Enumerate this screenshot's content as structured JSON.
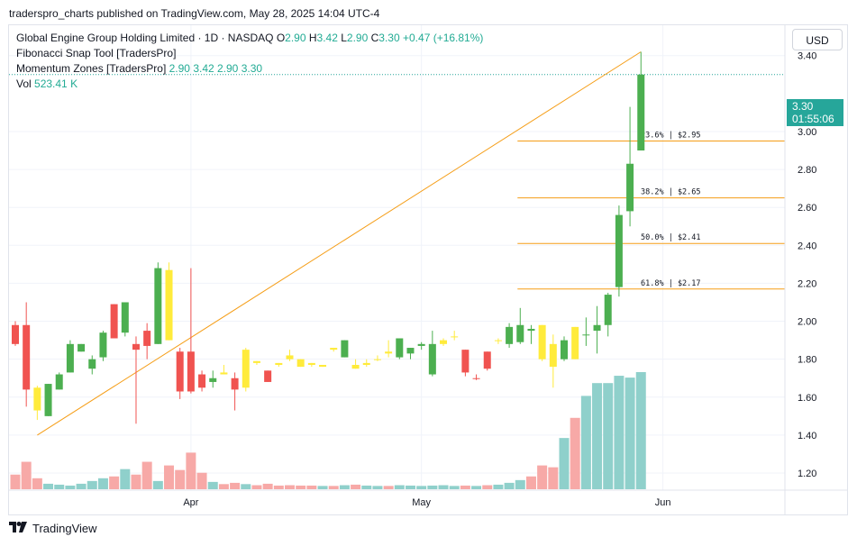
{
  "header": {
    "published_text": "traderspro_charts published on TradingView.com, May 28, 2025 14:04 UTC-4"
  },
  "legend": {
    "symbol_line": "Global Engine Group Holding Limited · 1D · NASDAQ",
    "o_label": "O",
    "o_value": "2.90",
    "h_label": "H",
    "h_value": "3.42",
    "l_label": "L",
    "l_value": "2.90",
    "c_label": "C",
    "c_value": "3.30",
    "change": "+0.47 (+16.81%)",
    "indicator1": "Fibonacci Snap Tool [TradersPro]",
    "indicator2_name": "Momentum Zones [TradersPro]",
    "indicator2_values": "2.90  3.42  2.90  3.30",
    "vol_label": "Vol",
    "vol_value": "523.41 K"
  },
  "currency_button": "USD",
  "price_tag": {
    "price": "3.30",
    "countdown": "01:55:06"
  },
  "footer": {
    "brand": "TradingView"
  },
  "colors": {
    "up": "#4caf50",
    "down": "#f05350",
    "neutral": "#ffeb3b",
    "vol_up": "#8fd0cb",
    "vol_down": "#f7a9a7",
    "fib": "#f59d16",
    "trend": "#f59d16",
    "last_price": "#26a69a"
  },
  "chart_data": {
    "type": "candlestick",
    "ylim": [
      1.11,
      3.56
    ],
    "y_ticks": [
      1.2,
      1.4,
      1.6,
      1.8,
      2.0,
      2.2,
      2.4,
      2.6,
      2.8,
      3.0,
      3.4
    ],
    "x_labels": [
      {
        "label": "Apr",
        "index": 16
      },
      {
        "label": "May",
        "index": 37
      },
      {
        "label": "Jun",
        "index": 59
      }
    ],
    "last_price": 3.3,
    "candles": [
      {
        "o": 1.98,
        "h": 2.0,
        "l": 1.87,
        "c": 1.88,
        "v": "down",
        "vol": 80
      },
      {
        "o": 1.98,
        "h": 2.1,
        "l": 1.55,
        "c": 1.64,
        "v": "down",
        "vol": 150
      },
      {
        "o": 1.65,
        "h": 1.66,
        "l": 1.48,
        "c": 1.53,
        "v": "neutral",
        "vol": 60
      },
      {
        "o": 1.5,
        "h": 1.67,
        "l": 1.5,
        "c": 1.67,
        "v": "up",
        "vol": 30
      },
      {
        "o": 1.64,
        "h": 1.73,
        "l": 1.64,
        "c": 1.72,
        "v": "up",
        "vol": 25
      },
      {
        "o": 1.73,
        "h": 1.9,
        "l": 1.73,
        "c": 1.88,
        "v": "up",
        "vol": 20
      },
      {
        "o": 1.84,
        "h": 1.88,
        "l": 1.84,
        "c": 1.88,
        "v": "up",
        "vol": 30
      },
      {
        "o": 1.75,
        "h": 1.82,
        "l": 1.72,
        "c": 1.8,
        "v": "up",
        "vol": 45
      },
      {
        "o": 1.81,
        "h": 1.95,
        "l": 1.79,
        "c": 1.94,
        "v": "up",
        "vol": 60
      },
      {
        "o": 2.09,
        "h": 2.09,
        "l": 1.91,
        "c": 1.91,
        "v": "down",
        "vol": 70
      },
      {
        "o": 1.94,
        "h": 2.1,
        "l": 1.92,
        "c": 2.1,
        "v": "up",
        "vol": 110
      },
      {
        "o": 1.88,
        "h": 1.92,
        "l": 1.46,
        "c": 1.85,
        "v": "down",
        "vol": 80
      },
      {
        "o": 1.95,
        "h": 1.99,
        "l": 1.8,
        "c": 1.87,
        "v": "down",
        "vol": 150
      },
      {
        "o": 1.88,
        "h": 2.31,
        "l": 1.88,
        "c": 2.28,
        "v": "up",
        "vol": 45
      },
      {
        "o": 2.27,
        "h": 2.31,
        "l": 1.9,
        "c": 1.9,
        "v": "neutral",
        "vol": 130
      },
      {
        "o": 1.84,
        "h": 1.86,
        "l": 1.59,
        "c": 1.63,
        "v": "down",
        "vol": 105
      },
      {
        "o": 1.84,
        "h": 2.28,
        "l": 1.62,
        "c": 1.63,
        "v": "down",
        "vol": 200
      },
      {
        "o": 1.72,
        "h": 1.74,
        "l": 1.63,
        "c": 1.65,
        "v": "down",
        "vol": 90
      },
      {
        "o": 1.68,
        "h": 1.74,
        "l": 1.65,
        "c": 1.7,
        "v": "up",
        "vol": 40
      },
      {
        "o": 1.73,
        "h": 1.77,
        "l": 1.72,
        "c": 1.72,
        "v": "neutral",
        "vol": 28
      },
      {
        "o": 1.7,
        "h": 1.73,
        "l": 1.53,
        "c": 1.64,
        "v": "down",
        "vol": 35
      },
      {
        "o": 1.65,
        "h": 1.86,
        "l": 1.63,
        "c": 1.85,
        "v": "neutral",
        "vol": 28
      },
      {
        "o": 1.79,
        "h": 1.79,
        "l": 1.77,
        "c": 1.78,
        "v": "neutral",
        "vol": 22
      },
      {
        "o": 1.74,
        "h": 1.74,
        "l": 1.68,
        "c": 1.68,
        "v": "down",
        "vol": 30
      },
      {
        "o": 1.78,
        "h": 1.78,
        "l": 1.76,
        "c": 1.77,
        "v": "neutral",
        "vol": 20
      },
      {
        "o": 1.82,
        "h": 1.85,
        "l": 1.79,
        "c": 1.8,
        "v": "neutral",
        "vol": 22
      },
      {
        "o": 1.8,
        "h": 1.8,
        "l": 1.76,
        "c": 1.76,
        "v": "neutral",
        "vol": 20
      },
      {
        "o": 1.78,
        "h": 1.78,
        "l": 1.76,
        "c": 1.77,
        "v": "neutral",
        "vol": 20
      },
      {
        "o": 1.76,
        "h": 1.77,
        "l": 1.76,
        "c": 1.77,
        "v": "neutral",
        "vol": 18
      },
      {
        "o": 1.86,
        "h": 1.86,
        "l": 1.84,
        "c": 1.85,
        "v": "neutral",
        "vol": 18
      },
      {
        "o": 1.81,
        "h": 1.9,
        "l": 1.81,
        "c": 1.9,
        "v": "up",
        "vol": 22
      },
      {
        "o": 1.77,
        "h": 1.8,
        "l": 1.75,
        "c": 1.75,
        "v": "neutral",
        "vol": 25
      },
      {
        "o": 1.77,
        "h": 1.8,
        "l": 1.76,
        "c": 1.78,
        "v": "neutral",
        "vol": 20
      },
      {
        "o": 1.8,
        "h": 1.82,
        "l": 1.79,
        "c": 1.8,
        "v": "neutral",
        "vol": 18
      },
      {
        "o": 1.84,
        "h": 1.9,
        "l": 1.81,
        "c": 1.83,
        "v": "neutral",
        "vol": 18
      },
      {
        "o": 1.81,
        "h": 1.91,
        "l": 1.8,
        "c": 1.91,
        "v": "up",
        "vol": 22
      },
      {
        "o": 1.83,
        "h": 1.86,
        "l": 1.8,
        "c": 1.86,
        "v": "up",
        "vol": 20
      },
      {
        "o": 1.87,
        "h": 1.89,
        "l": 1.85,
        "c": 1.88,
        "v": "up",
        "vol": 18
      },
      {
        "o": 1.72,
        "h": 1.95,
        "l": 1.71,
        "c": 1.88,
        "v": "up",
        "vol": 20
      },
      {
        "o": 1.88,
        "h": 1.91,
        "l": 1.87,
        "c": 1.9,
        "v": "neutral",
        "vol": 22
      },
      {
        "o": 1.92,
        "h": 1.95,
        "l": 1.9,
        "c": 1.92,
        "v": "neutral",
        "vol": 18
      },
      {
        "o": 1.85,
        "h": 1.85,
        "l": 1.71,
        "c": 1.73,
        "v": "down",
        "vol": 20
      },
      {
        "o": 1.7,
        "h": 1.72,
        "l": 1.69,
        "c": 1.7,
        "v": "down",
        "vol": 18
      },
      {
        "o": 1.84,
        "h": 1.84,
        "l": 1.74,
        "c": 1.75,
        "v": "down",
        "vol": 22
      },
      {
        "o": 1.9,
        "h": 1.91,
        "l": 1.88,
        "c": 1.9,
        "v": "neutral",
        "vol": 25
      },
      {
        "o": 1.88,
        "h": 1.99,
        "l": 1.86,
        "c": 1.97,
        "v": "up",
        "vol": 35
      },
      {
        "o": 1.89,
        "h": 2.07,
        "l": 1.88,
        "c": 1.98,
        "v": "up",
        "vol": 50
      },
      {
        "o": 1.96,
        "h": 1.98,
        "l": 1.88,
        "c": 1.95,
        "v": "up",
        "vol": 70
      },
      {
        "o": 1.98,
        "h": 1.98,
        "l": 1.79,
        "c": 1.8,
        "v": "neutral",
        "vol": 130
      },
      {
        "o": 1.88,
        "h": 1.93,
        "l": 1.65,
        "c": 1.76,
        "v": "neutral",
        "vol": 120
      },
      {
        "o": 1.8,
        "h": 1.92,
        "l": 1.79,
        "c": 1.9,
        "v": "up",
        "vol": 280
      },
      {
        "o": 1.97,
        "h": 1.97,
        "l": 1.8,
        "c": 1.8,
        "v": "neutral",
        "vol": 390
      },
      {
        "o": 1.93,
        "h": 2.02,
        "l": 1.87,
        "c": 1.93,
        "v": "up",
        "vol": 510
      },
      {
        "o": 1.95,
        "h": 2.08,
        "l": 1.83,
        "c": 1.98,
        "v": "up",
        "vol": 580
      },
      {
        "o": 1.98,
        "h": 2.15,
        "l": 1.92,
        "c": 2.14,
        "v": "up",
        "vol": 580
      },
      {
        "o": 2.18,
        "h": 2.61,
        "l": 2.13,
        "c": 2.56,
        "v": "up",
        "vol": 620
      },
      {
        "o": 2.58,
        "h": 3.13,
        "l": 2.5,
        "c": 2.83,
        "v": "up",
        "vol": 610
      },
      {
        "o": 2.9,
        "h": 3.42,
        "l": 2.9,
        "c": 3.3,
        "v": "up",
        "vol": 640
      }
    ],
    "fib_levels": [
      {
        "label": "23.6% | $2.95",
        "price": 2.95
      },
      {
        "label": "38.2% | $2.65",
        "price": 2.65
      },
      {
        "label": "50.0% | $2.41",
        "price": 2.41
      },
      {
        "label": "61.8% | $2.17",
        "price": 2.17
      }
    ],
    "fib_start_index": 46,
    "trend_line": {
      "from": {
        "index": 2,
        "price": 1.4
      },
      "to": {
        "index": 57,
        "price": 3.42
      }
    }
  }
}
